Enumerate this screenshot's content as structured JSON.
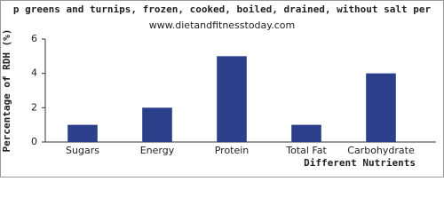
{
  "chart_data": {
    "type": "bar",
    "title": "p greens and turnips, frozen, cooked, boiled, drained, without salt per",
    "subtitle": "www.dietandfitnesstoday.com",
    "y_label": "Percentage of RDH (%)",
    "x_label": "Different Nutrients",
    "categories": [
      "Sugars",
      "Energy",
      "Protein",
      "Total Fat",
      "Carbohydrate"
    ],
    "values": [
      1,
      2,
      5,
      1,
      4
    ],
    "color": "#2b3f8a",
    "ylim": [
      0,
      6
    ],
    "yticks": [
      0,
      2,
      4,
      6
    ],
    "grid": false
  }
}
